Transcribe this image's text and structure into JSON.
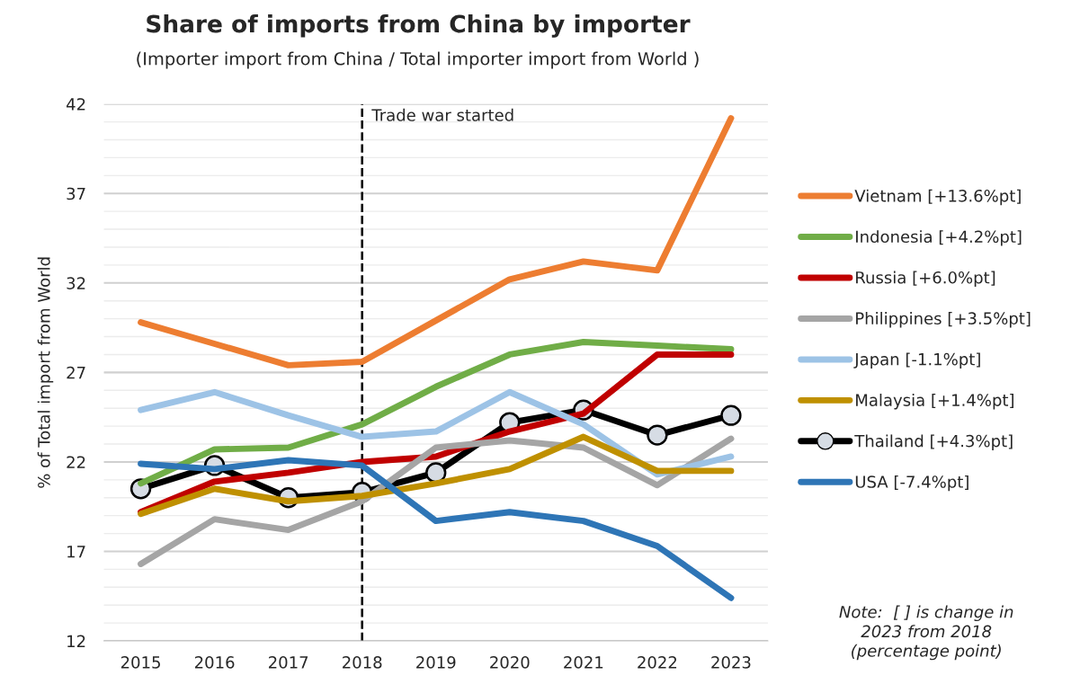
{
  "chart_data": {
    "type": "line",
    "title": "Share of imports from China by importer",
    "subtitle": "(Importer import from China / Total importer import from World )",
    "ylabel": "% of Total import from World",
    "categories": [
      "2015",
      "2016",
      "2017",
      "2018",
      "2019",
      "2020",
      "2021",
      "2022",
      "2023"
    ],
    "series": [
      {
        "name": "Vietnam [+13.6%pt]",
        "color": "#ed7d31",
        "values": [
          29.8,
          28.6,
          27.4,
          27.6,
          29.9,
          32.2,
          33.2,
          32.7,
          41.2
        ]
      },
      {
        "name": "Indonesia [+4.2%pt]",
        "color": "#70ad47",
        "values": [
          20.8,
          22.7,
          22.8,
          24.1,
          26.2,
          28.0,
          28.7,
          28.5,
          28.3
        ]
      },
      {
        "name": "Russia [+6.0%pt]",
        "color": "#c00000",
        "values": [
          19.2,
          20.9,
          21.4,
          22.0,
          22.3,
          23.7,
          24.7,
          28.0,
          28.0
        ]
      },
      {
        "name": "Philippines [+3.5%pt]",
        "color": "#a5a5a5",
        "values": [
          16.3,
          18.8,
          18.2,
          19.8,
          22.8,
          23.2,
          22.8,
          20.7,
          23.3
        ]
      },
      {
        "name": "Japan [-1.1%pt]",
        "color": "#9dc3e6",
        "values": [
          24.9,
          25.9,
          24.6,
          23.4,
          23.7,
          25.9,
          24.1,
          21.3,
          22.3
        ]
      },
      {
        "name": "Malaysia [+1.4%pt]",
        "color": "#bf9000",
        "values": [
          19.1,
          20.5,
          19.8,
          20.1,
          20.8,
          21.6,
          23.4,
          21.5,
          21.5
        ]
      },
      {
        "name": "Thailand [+4.3%pt]",
        "color": "#000000",
        "marker": "circle",
        "values": [
          20.5,
          21.8,
          20.0,
          20.3,
          21.4,
          24.2,
          24.9,
          23.5,
          24.6
        ]
      },
      {
        "name": "USA [-7.4%pt]",
        "color": "#2e75b6",
        "values": [
          21.9,
          21.6,
          22.1,
          21.8,
          18.7,
          19.2,
          18.7,
          17.3,
          14.4
        ]
      }
    ],
    "ylim": [
      12,
      42
    ],
    "yticks": [
      12,
      {
        "value": 13,
        "label": null
      },
      {
        "value": 14,
        "label": null
      },
      {
        "value": 15,
        "label": null
      },
      {
        "value": 16,
        "label": null
      },
      17,
      {
        "value": 18,
        "label": null
      },
      {
        "value": 19,
        "label": null
      },
      {
        "value": 20,
        "label": null
      },
      {
        "value": 21,
        "label": null
      },
      22,
      {
        "value": 23,
        "label": null
      },
      {
        "value": 24,
        "label": null
      },
      {
        "value": 25,
        "label": null
      },
      {
        "value": 26,
        "label": null
      },
      27,
      {
        "value": 28,
        "label": null
      },
      {
        "value": 29,
        "label": null
      },
      {
        "value": 30,
        "label": null
      },
      {
        "value": 31,
        "label": null
      },
      32,
      {
        "value": 33,
        "label": null
      },
      {
        "value": 34,
        "label": null
      },
      {
        "value": 35,
        "label": null
      },
      {
        "value": 36,
        "label": null
      },
      37,
      {
        "value": 38,
        "label": null
      },
      {
        "value": 39,
        "label": null
      },
      {
        "value": 40,
        "label": null
      },
      {
        "value": 41,
        "label": null
      },
      42
    ],
    "grid": "y",
    "ref_lines": [
      {
        "axis": "x",
        "value": "2018",
        "label": "Trade war started",
        "color": "#000000",
        "line_style": "dashed"
      }
    ],
    "annotations": [
      "Note:  [ ] is change in\n2023 from 2018\n(percentage point)"
    ],
    "legend": "right"
  }
}
